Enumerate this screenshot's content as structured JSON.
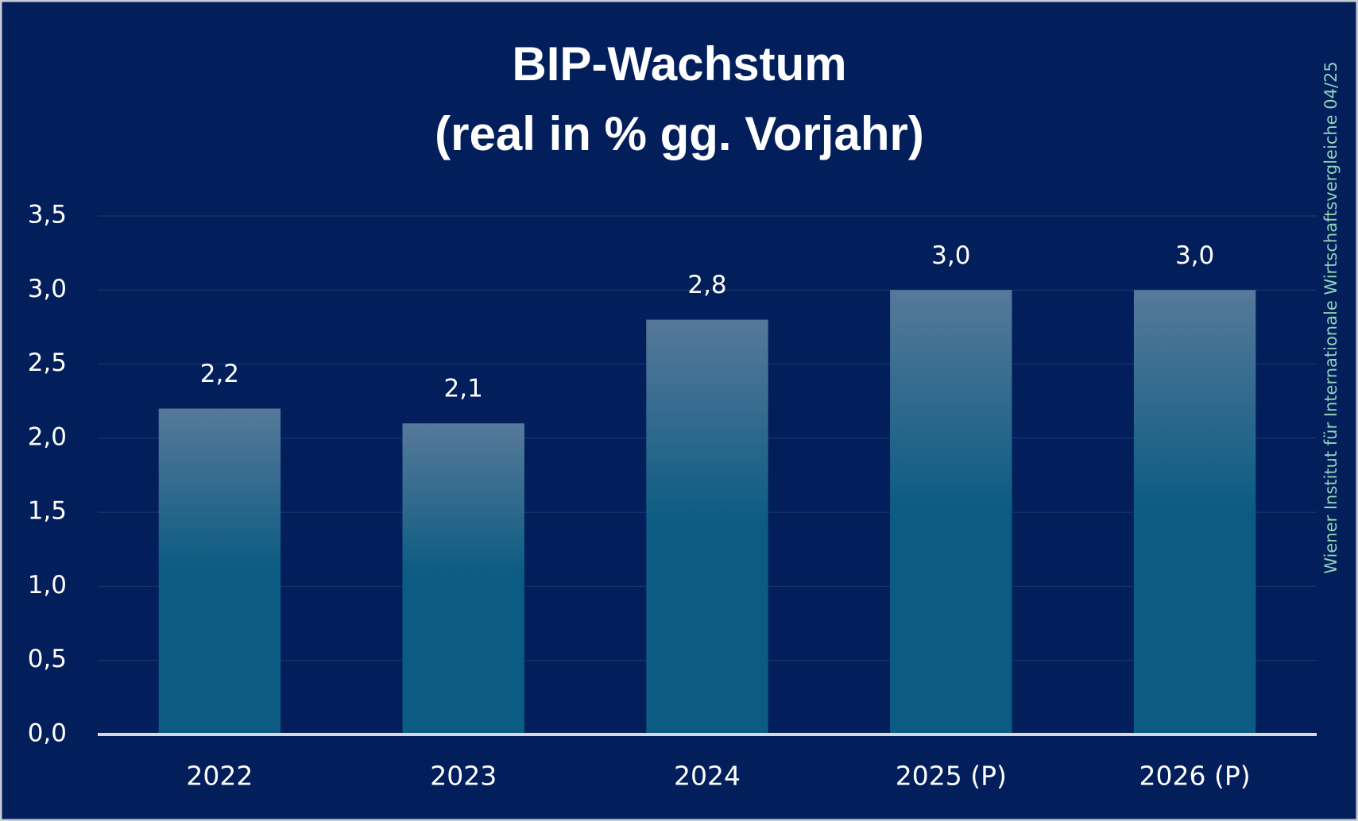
{
  "chart_data": {
    "type": "bar",
    "title": "BIP-Wachstum",
    "subtitle": "(real in % gg. Vorjahr)",
    "source": "Wiener Institut für Internationale Wirtschaftsvergleiche 04/25",
    "categories": [
      "2022",
      "2023",
      "2024",
      "2025 (P)",
      "2026 (P)"
    ],
    "values": [
      2.2,
      2.1,
      2.8,
      3.0,
      3.0
    ],
    "value_labels": [
      "2,2",
      "2,1",
      "2,8",
      "3,0",
      "3,0"
    ],
    "color": "#0b5b82",
    "ylim": [
      0,
      3.5
    ],
    "yticks": [
      {
        "value": 0,
        "label": "0,0"
      },
      {
        "value": 0.5,
        "label": "0,5"
      },
      {
        "value": 1,
        "label": "1,0"
      },
      {
        "value": 1.5,
        "label": "1,5"
      },
      {
        "value": 2,
        "label": "2,0"
      },
      {
        "value": 2.5,
        "label": "2,5"
      },
      {
        "value": 3,
        "label": "3,0"
      },
      {
        "value": 3.5,
        "label": "3,5"
      }
    ],
    "grid": true
  }
}
